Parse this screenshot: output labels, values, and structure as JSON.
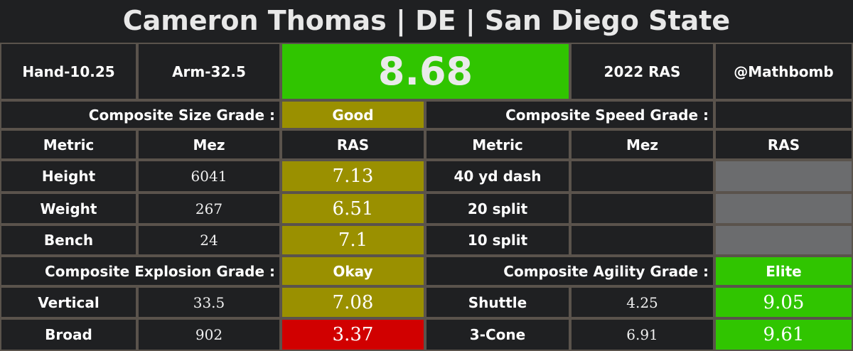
{
  "title": "Cameron Thomas | DE | San Diego State",
  "colors": {
    "background": "#1f2022",
    "border": "#5a534c",
    "olive": "#9a9000",
    "green": "#30c500",
    "red": "#d10000",
    "grey": "#6b6c6e"
  },
  "top": {
    "hand": "Hand-10.25",
    "arm": "Arm-32.5",
    "score": "8.68",
    "year_label": "2022 RAS",
    "handle": "@Mathbomb"
  },
  "size": {
    "grade_label": "Composite Size Grade :",
    "grade": "Good",
    "headers": {
      "metric": "Metric",
      "mez": "Mez",
      "ras": "RAS"
    },
    "rows": [
      {
        "metric": "Height",
        "mez": "6041",
        "ras": "7.13"
      },
      {
        "metric": "Weight",
        "mez": "267",
        "ras": "6.51"
      },
      {
        "metric": "Bench",
        "mez": "24",
        "ras": "7.1"
      }
    ]
  },
  "speed": {
    "grade_label": "Composite Speed Grade :",
    "grade": "",
    "headers": {
      "metric": "Metric",
      "mez": "Mez",
      "ras": "RAS"
    },
    "rows": [
      {
        "metric": "40 yd dash",
        "mez": "",
        "ras": ""
      },
      {
        "metric": "20 split",
        "mez": "",
        "ras": ""
      },
      {
        "metric": "10 split",
        "mez": "",
        "ras": ""
      }
    ]
  },
  "explosion": {
    "grade_label": "Composite Explosion Grade :",
    "grade": "Okay",
    "rows": [
      {
        "metric": "Vertical",
        "mez": "33.5",
        "ras": "7.08"
      },
      {
        "metric": "Broad",
        "mez": "902",
        "ras": "3.37"
      }
    ]
  },
  "agility": {
    "grade_label": "Composite Agility Grade :",
    "grade": "Elite",
    "rows": [
      {
        "metric": "Shuttle",
        "mez": "4.25",
        "ras": "9.05"
      },
      {
        "metric": "3-Cone",
        "mez": "6.91",
        "ras": "9.61"
      }
    ]
  }
}
